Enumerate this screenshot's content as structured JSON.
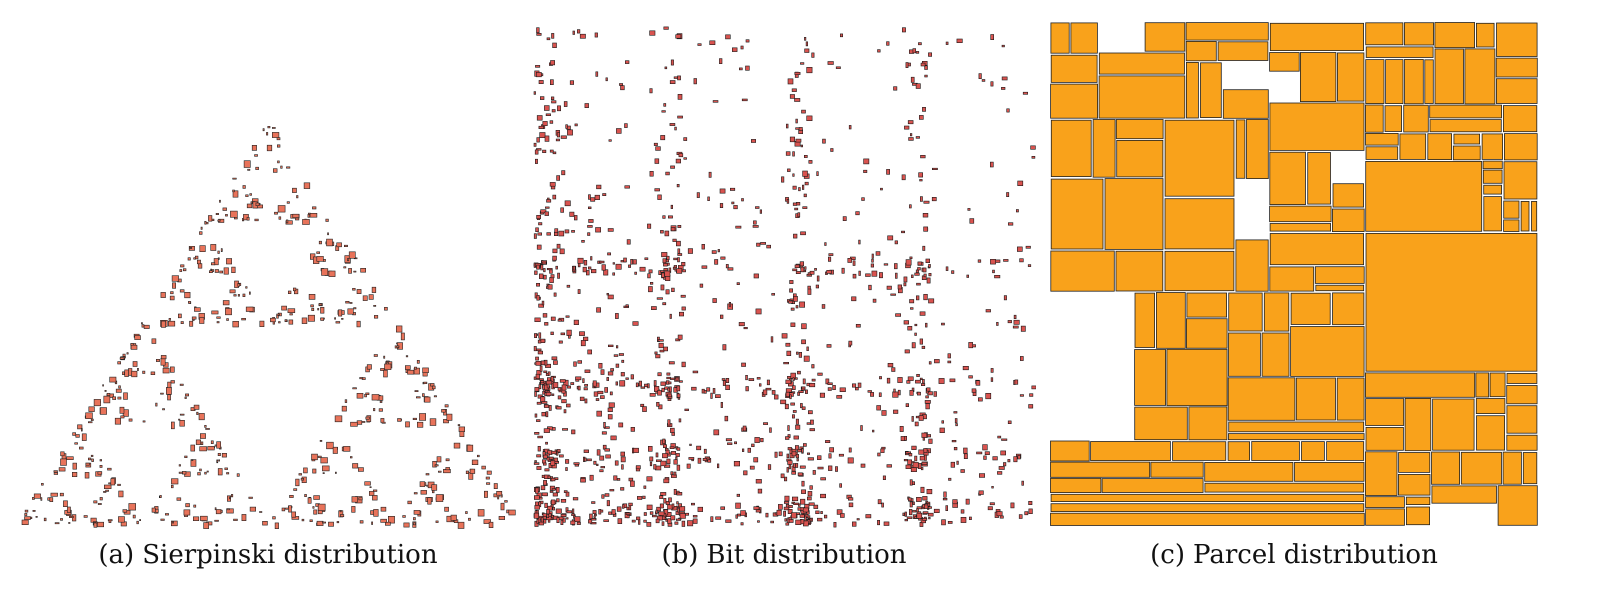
{
  "panels": [
    {
      "tag": "(a)",
      "caption": "Sierpinski distribution",
      "fill": "#e8735a",
      "stroke": "#222222"
    },
    {
      "tag": "(b)",
      "caption": "Bit distribution",
      "fill": "#d9534f",
      "stroke": "#1a1a1a"
    },
    {
      "tag": "(c)",
      "caption": "Parcel distribution",
      "fill": "#f9a21b",
      "stroke": "#222222"
    }
  ]
}
